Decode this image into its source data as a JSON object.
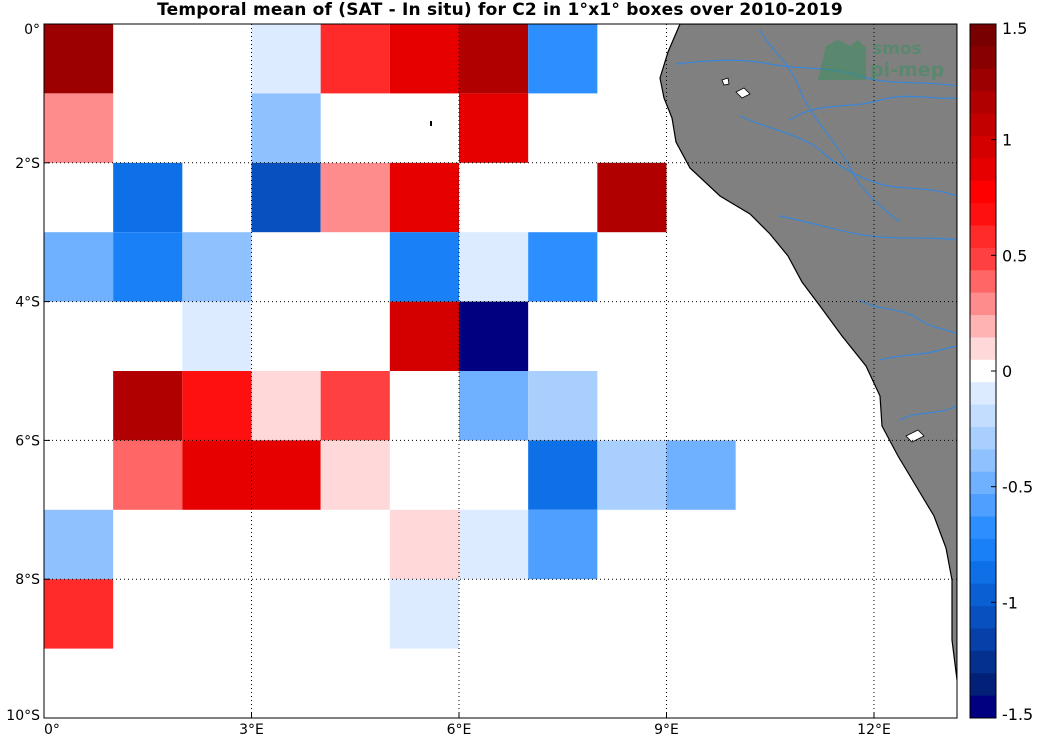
{
  "chart_data": {
    "type": "heatmap",
    "title": "Temporal mean of (SAT - In situ) for C2 in 1°x1° boxes over 2010-2019",
    "x_ticks": [
      {
        "value": 0,
        "label": "0°"
      },
      {
        "value": 3,
        "label": "3°E"
      },
      {
        "value": 6,
        "label": "6°E"
      },
      {
        "value": 9,
        "label": "9°E"
      },
      {
        "value": 12,
        "label": "12°E"
      }
    ],
    "y_ticks": [
      {
        "value": 0,
        "label": "0°"
      },
      {
        "value": -2,
        "label": "2°S"
      },
      {
        "value": -4,
        "label": "4°S"
      },
      {
        "value": -6,
        "label": "6°S"
      },
      {
        "value": -8,
        "label": "8°S"
      },
      {
        "value": -10,
        "label": "10°S"
      }
    ],
    "xlim": [
      0,
      13.2
    ],
    "ylim": [
      -10,
      0
    ],
    "grid": true,
    "colorbar": {
      "range": [
        -1.5,
        1.5
      ],
      "ticks": [
        {
          "value": 1.5,
          "label": "1.5"
        },
        {
          "value": 1,
          "label": "1"
        },
        {
          "value": 0.5,
          "label": "0.5"
        },
        {
          "value": 0,
          "label": "0"
        },
        {
          "value": -0.5,
          "label": "-0.5"
        },
        {
          "value": -1,
          "label": "-1"
        },
        {
          "value": -1.5,
          "label": "-1.5"
        }
      ]
    },
    "cells": [
      {
        "lon": 0,
        "lat": 0,
        "value": 1.3
      },
      {
        "lon": 3,
        "lat": 0,
        "value": -0.15
      },
      {
        "lon": 4,
        "lat": 0,
        "value": 0.6
      },
      {
        "lon": 5,
        "lat": 0,
        "value": 0.9
      },
      {
        "lon": 6,
        "lat": 0,
        "value": 1.15
      },
      {
        "lon": 7,
        "lat": 0,
        "value": -0.7
      },
      {
        "lon": 0,
        "lat": -1,
        "value": 0.3
      },
      {
        "lon": 3,
        "lat": -1,
        "value": -0.4
      },
      {
        "lon": 6,
        "lat": -1,
        "value": 0.85
      },
      {
        "lon": 1,
        "lat": -2,
        "value": -0.9
      },
      {
        "lon": 3,
        "lat": -2,
        "value": -1.05
      },
      {
        "lon": 4,
        "lat": -2,
        "value": 0.3
      },
      {
        "lon": 5,
        "lat": -2,
        "value": 0.85
      },
      {
        "lon": 8,
        "lat": -2,
        "value": 1.2
      },
      {
        "lon": 0,
        "lat": -3,
        "value": -0.5
      },
      {
        "lon": 1,
        "lat": -3,
        "value": -0.75
      },
      {
        "lon": 2,
        "lat": -3,
        "value": -0.4
      },
      {
        "lon": 5,
        "lat": -3,
        "value": -0.75
      },
      {
        "lon": 6,
        "lat": -3,
        "value": -0.15
      },
      {
        "lon": 7,
        "lat": -3,
        "value": -0.7
      },
      {
        "lon": 2,
        "lat": -4,
        "value": -0.15
      },
      {
        "lon": 5,
        "lat": -4,
        "value": 1.0
      },
      {
        "lon": 6,
        "lat": -4,
        "value": -1.5
      },
      {
        "lon": 1,
        "lat": -5,
        "value": 1.2
      },
      {
        "lon": 2,
        "lat": -5,
        "value": 0.7
      },
      {
        "lon": 3,
        "lat": -5,
        "value": 0.15
      },
      {
        "lon": 4,
        "lat": -5,
        "value": 0.5
      },
      {
        "lon": 6,
        "lat": -5,
        "value": -0.5
      },
      {
        "lon": 7,
        "lat": -5,
        "value": -0.25
      },
      {
        "lon": 1,
        "lat": -6,
        "value": 0.4
      },
      {
        "lon": 2,
        "lat": -6,
        "value": 0.9
      },
      {
        "lon": 3,
        "lat": -6,
        "value": 0.9
      },
      {
        "lon": 4,
        "lat": -6,
        "value": 0.15
      },
      {
        "lon": 7,
        "lat": -6,
        "value": -0.9
      },
      {
        "lon": 8,
        "lat": -6,
        "value": -0.25
      },
      {
        "lon": 9,
        "lat": -6,
        "value": -0.5
      },
      {
        "lon": 0,
        "lat": -7,
        "value": -0.4
      },
      {
        "lon": 5,
        "lat": -7,
        "value": 0.15
      },
      {
        "lon": 6,
        "lat": -7,
        "value": -0.15
      },
      {
        "lon": 7,
        "lat": -7,
        "value": -0.6
      },
      {
        "lon": 0,
        "lat": -8,
        "value": 0.55
      },
      {
        "lon": 5,
        "lat": -8,
        "value": -0.15
      }
    ],
    "colors": {
      "land": "#808080",
      "coast": "#000000",
      "rivers": "#3a86d6",
      "grid": "#000000"
    }
  },
  "watermark": {
    "line1": "smos",
    "line2": "pi-mep",
    "color": "#3a9060"
  }
}
